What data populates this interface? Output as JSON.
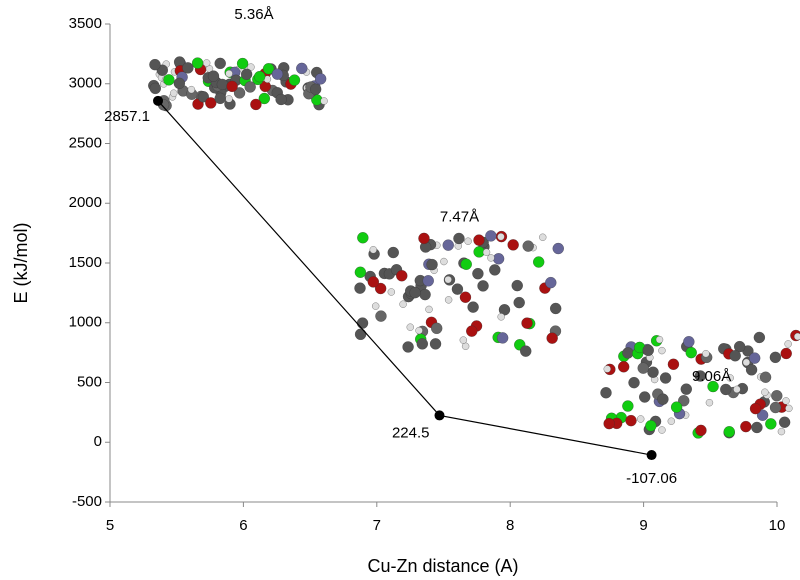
{
  "chart_data": {
    "type": "line",
    "x": [
      5.36,
      7.47,
      9.06
    ],
    "values": [
      2857.1,
      224.5,
      -107.06
    ],
    "color": "#000000",
    "x_label": "Cu-Zn distance (A)",
    "y_label": "E (kJ/mol)",
    "annotations": [
      "5.36Å",
      "7.47Å",
      "9.06Å"
    ],
    "xlim": [
      5,
      10
    ],
    "xticks": [
      5,
      6,
      7,
      8,
      9,
      10
    ],
    "ylim": [
      -500,
      3500
    ],
    "yticks": [
      -500,
      0,
      500,
      1000,
      1500,
      2000,
      2500,
      3000,
      3500
    ],
    "grid": false
  }
}
